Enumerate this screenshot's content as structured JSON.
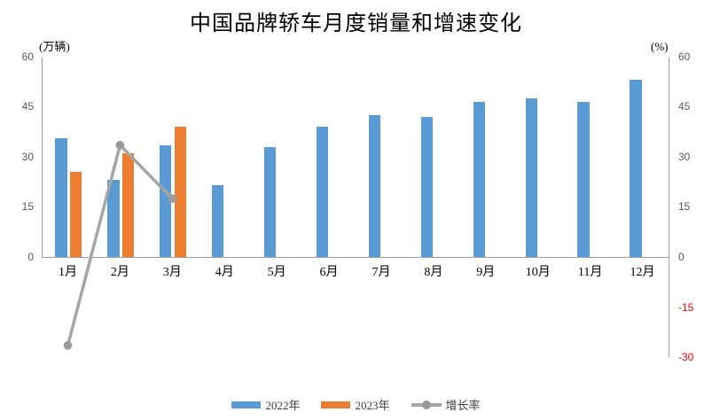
{
  "title": "中国品牌轿车月度销量和增速变化",
  "chart_data": {
    "type": "bar",
    "subtype": "grouped-bar-with-line-combo",
    "title": "中国品牌轿车月度销量和增速变化",
    "categories": [
      "1月",
      "2月",
      "3月",
      "4月",
      "5月",
      "6月",
      "7月",
      "8月",
      "9月",
      "10月",
      "11月",
      "12月"
    ],
    "series": [
      {
        "name": "2022年",
        "type": "bar",
        "axis": "left",
        "color": "#5b9bd5",
        "values": [
          35.5,
          23,
          33.5,
          21.5,
          33,
          39,
          42.5,
          42,
          46.5,
          47.5,
          46.5,
          53
        ]
      },
      {
        "name": "2023年",
        "type": "bar",
        "axis": "left",
        "color": "#ed7d31",
        "values": [
          25.5,
          31,
          39
        ]
      },
      {
        "name": "增长率",
        "type": "line",
        "axis": "right",
        "color": "#a5a5a5",
        "values": [
          -26.5,
          33.5,
          17.5
        ]
      }
    ],
    "left_axis": {
      "label": "(万辆)",
      "ticks": [
        0,
        15,
        30,
        45,
        60
      ],
      "range": [
        0,
        60
      ]
    },
    "right_axis": {
      "label": "(%)",
      "ticks": [
        -30,
        -15,
        0,
        15,
        30,
        45,
        60
      ],
      "range": [
        -30,
        60
      ],
      "negative_tick_color": "#ff0000"
    },
    "grid": "off",
    "legend_position": "bottom"
  }
}
